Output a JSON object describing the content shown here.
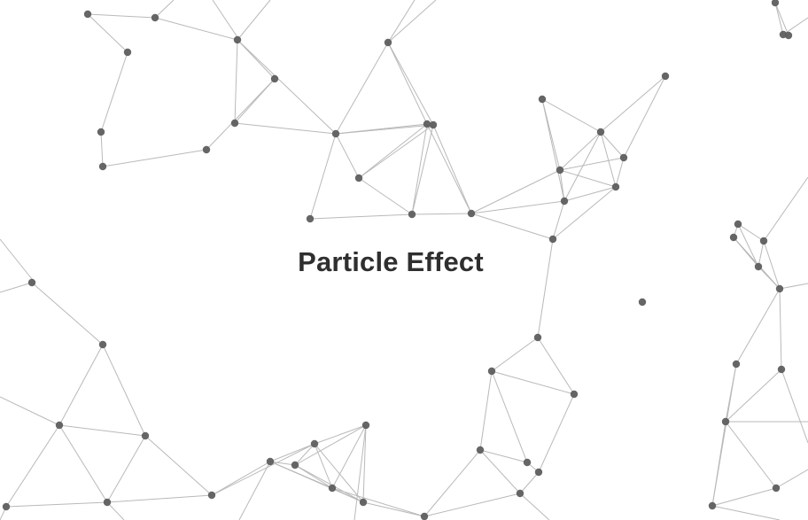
{
  "page": {
    "title": "Particle Effect"
  },
  "colors": {
    "background": "#ffffff",
    "particle": "#5e5e5e",
    "link": "#b9b9b9",
    "title": "#2f2f2f"
  }
}
